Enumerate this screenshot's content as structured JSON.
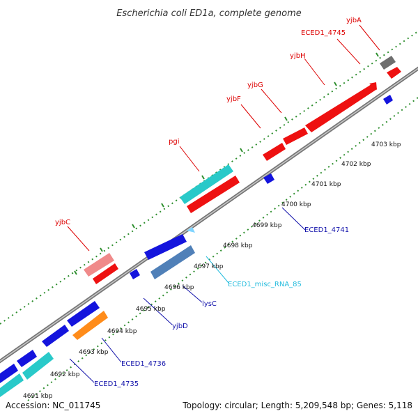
{
  "title": "Escherichia coli ED1a, complete genome",
  "footer": {
    "accession": "Accession: NC_011745",
    "summary": "Topology: circular; Length: 5,209,548 bp; Genes: 5,118"
  },
  "colors": {
    "backbone": "#8c8c8c",
    "dots": "#2f8f2f",
    "forward_gene": "#ee1111",
    "forward_gene_light": "#f08a8a",
    "reverse_gene": "#1414dd",
    "rna": "#29c9c9",
    "rna_light": "#7fd4ff",
    "gray_gene": "#6e6e6e",
    "orange_gene": "#ff8c1a",
    "steelblue_gene": "#5080b8",
    "label_red": "#dd0000",
    "label_blue": "#1111aa",
    "label_cyan": "#22bbdd"
  },
  "ticks": [
    "4691 kbp",
    "4692 kbp",
    "4693 kbp",
    "4694 kbp",
    "4695 kbp",
    "4696 kbp",
    "4697 kbp",
    "4698 kbp",
    "4699 kbp",
    "4700 kbp",
    "4701 kbp",
    "4702 kbp",
    "4703 kbp"
  ],
  "labels": {
    "yjbA": "yjbA",
    "ECED1_4745": "ECED1_4745",
    "yjbH": "yjbH",
    "yjbG": "yjbG",
    "yjbF": "yjbF",
    "pgi": "pgi",
    "yjbC": "yjbC",
    "ECED1_4741": "ECED1_4741",
    "ECED1_misc_RNA_85": "ECED1_misc_RNA_85",
    "lysC": "lysC",
    "yjbD": "yjbD",
    "ECED1_4736": "ECED1_4736",
    "ECED1_4735": "ECED1_4735"
  }
}
